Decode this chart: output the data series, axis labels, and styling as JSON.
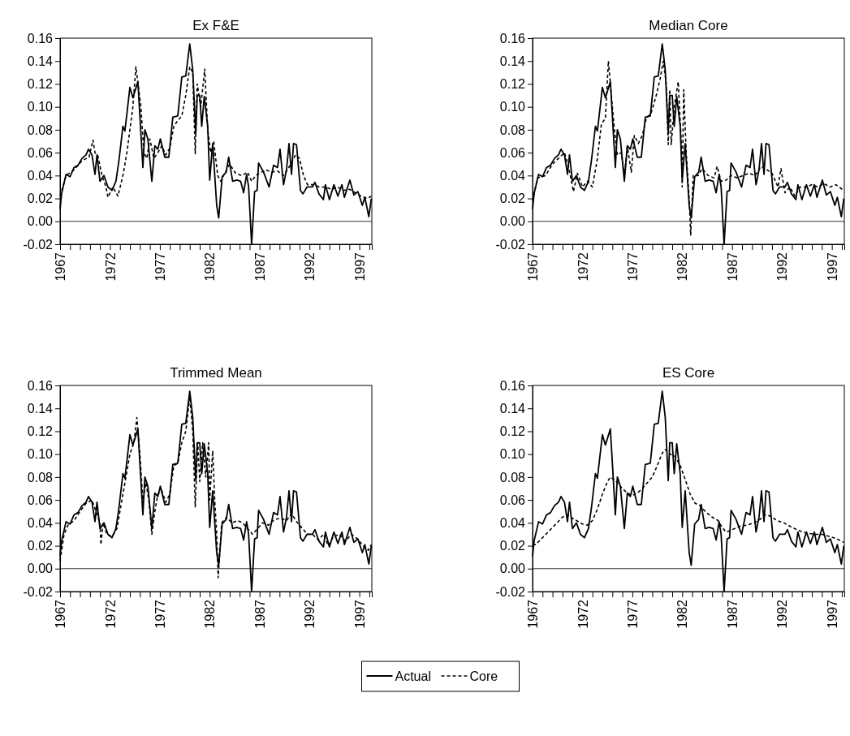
{
  "chart_data": [
    {
      "type": "line",
      "title": "Ex F&E",
      "xlim": [
        1967,
        1998.25
      ],
      "ylim": [
        -0.02,
        0.16
      ],
      "yticks": [
        {
          "value": -0.02,
          "label": "-0.02"
        },
        {
          "value": 0,
          "label": "0.00"
        },
        {
          "value": 0.02,
          "label": "0.02"
        },
        {
          "value": 0.04,
          "label": "0.04"
        },
        {
          "value": 0.06,
          "label": "0.06"
        },
        {
          "value": 0.08,
          "label": "0.08"
        },
        {
          "value": 0.1,
          "label": "0.10"
        },
        {
          "value": 0.12,
          "label": "0.12"
        },
        {
          "value": 0.14,
          "label": "0.14"
        },
        {
          "value": 0.16,
          "label": "0.16"
        }
      ],
      "xticks": [
        1967,
        {
          "value": 1968,
          "label": null
        },
        {
          "value": 1969,
          "label": null
        },
        {
          "value": 1970,
          "label": null
        },
        {
          "value": 1971,
          "label": null
        },
        1972,
        {
          "value": 1973,
          "label": null
        },
        {
          "value": 1974,
          "label": null
        },
        {
          "value": 1975,
          "label": null
        },
        {
          "value": 1976,
          "label": null
        },
        1977,
        {
          "value": 1978,
          "label": null
        },
        {
          "value": 1979,
          "label": null
        },
        {
          "value": 1980,
          "label": null
        },
        {
          "value": 1981,
          "label": null
        },
        1982,
        {
          "value": 1983,
          "label": null
        },
        {
          "value": 1984,
          "label": null
        },
        {
          "value": 1985,
          "label": null
        },
        {
          "value": 1986,
          "label": null
        },
        1987,
        {
          "value": 1988,
          "label": null
        },
        {
          "value": 1989,
          "label": null
        },
        {
          "value": 1990,
          "label": null
        },
        {
          "value": 1991,
          "label": null
        },
        1992,
        {
          "value": 1993,
          "label": null
        },
        {
          "value": 1994,
          "label": null
        },
        {
          "value": 1995,
          "label": null
        },
        {
          "value": 1996,
          "label": null
        },
        1997,
        {
          "value": 1998,
          "label": null
        }
      ],
      "ref_lines": [
        {
          "axis": "y",
          "value": 0,
          "color": "#000000"
        }
      ],
      "legend": "bottom",
      "series": [
        {
          "name": "Actual",
          "color": "#000000",
          "line_style": "solid",
          "x": [
            1967.0,
            1967.15,
            1967.6,
            1968.0,
            1968.4,
            1968.8,
            1969.2,
            1969.6,
            1969.85,
            1970.2,
            1970.5,
            1970.7,
            1971.0,
            1971.4,
            1971.8,
            1972.2,
            1972.6,
            1972.9,
            1973.3,
            1973.5,
            1974.0,
            1974.3,
            1974.8,
            1975.3,
            1975.5,
            1975.8,
            1976.2,
            1976.5,
            1976.8,
            1977.05,
            1977.5,
            1977.9,
            1978.3,
            1978.8,
            1979.2,
            1979.6,
            1980.0,
            1980.3,
            1980.6,
            1980.75,
            1981.0,
            1981.2,
            1981.45,
            1981.8,
            1982.0,
            1982.3,
            1982.7,
            1982.9,
            1983.25,
            1983.65,
            1983.9,
            1984.3,
            1984.7,
            1985.1,
            1985.4,
            1985.7,
            1985.9,
            1986.2,
            1986.5,
            1986.75,
            1986.9,
            1987.4,
            1987.95,
            1988.4,
            1988.8,
            1989.05,
            1989.4,
            1989.7,
            1989.95,
            1990.2,
            1990.4,
            1990.7,
            1991.1,
            1991.35,
            1991.75,
            1992.3,
            1992.55,
            1992.95,
            1993.4,
            1993.6,
            1994.0,
            1994.45,
            1994.85,
            1995.25,
            1995.5,
            1996.05,
            1996.45,
            1996.85,
            1997.3,
            1997.55,
            1997.95,
            1998.2
          ],
          "values": [
            0.0105,
            0.024,
            0.041,
            0.039,
            0.047,
            0.049,
            0.055,
            0.058,
            0.063,
            0.058,
            0.041,
            0.058,
            0.035,
            0.04,
            0.03,
            0.027,
            0.035,
            0.053,
            0.083,
            0.079,
            0.117,
            0.108,
            0.122,
            0.047,
            0.08,
            0.072,
            0.035,
            0.066,
            0.063,
            0.072,
            0.056,
            0.056,
            0.091,
            0.092,
            0.126,
            0.127,
            0.155,
            0.132,
            0.077,
            0.11,
            0.11,
            0.083,
            0.109,
            0.083,
            0.036,
            0.068,
            0.014,
            0.003,
            0.039,
            0.043,
            0.056,
            0.035,
            0.036,
            0.035,
            0.025,
            0.041,
            0.03,
            -0.02,
            0.026,
            0.027,
            0.051,
            0.043,
            0.03,
            0.049,
            0.047,
            0.063,
            0.032,
            0.045,
            0.068,
            0.041,
            0.068,
            0.067,
            0.027,
            0.024,
            0.03,
            0.03,
            0.034,
            0.024,
            0.019,
            0.032,
            0.019,
            0.032,
            0.022,
            0.032,
            0.021,
            0.036,
            0.023,
            0.026,
            0.014,
            0.021,
            0.004,
            0.02
          ]
        },
        {
          "name": "Core",
          "color": "#000000",
          "line_style": "dashed",
          "x": [
            1967.0,
            1967.6,
            1968.4,
            1969.2,
            1969.9,
            1970.3,
            1970.5,
            1970.8,
            1971.2,
            1971.6,
            1971.8,
            1972.3,
            1972.8,
            1973.3,
            1973.7,
            1974.0,
            1974.3,
            1974.6,
            1975.1,
            1975.4,
            1975.7,
            1976.0,
            1976.4,
            1976.8,
            1977.2,
            1977.6,
            1978.0,
            1978.4,
            1978.8,
            1979.2,
            1979.6,
            1980.0,
            1980.3,
            1980.55,
            1980.75,
            1981.1,
            1981.5,
            1981.8,
            1982.1,
            1982.4,
            1982.8,
            1983.1,
            1983.5,
            1984.0,
            1984.6,
            1985.2,
            1985.8,
            1986.2,
            1986.6,
            1987.0,
            1987.6,
            1988.2,
            1988.8,
            1989.4,
            1990.0,
            1990.6,
            1991.0,
            1991.4,
            1991.8,
            1992.4,
            1993.0,
            1993.6,
            1994.2,
            1994.8,
            1995.4,
            1996.0,
            1996.6,
            1997.2,
            1997.8,
            1998.2
          ],
          "values": [
            0.022,
            0.04,
            0.045,
            0.053,
            0.056,
            0.071,
            0.06,
            0.057,
            0.04,
            0.03,
            0.021,
            0.03,
            0.022,
            0.04,
            0.06,
            0.08,
            0.1,
            0.135,
            0.1,
            0.06,
            0.055,
            0.072,
            0.055,
            0.06,
            0.066,
            0.058,
            0.064,
            0.083,
            0.088,
            0.092,
            0.11,
            0.135,
            0.13,
            0.059,
            0.12,
            0.1,
            0.133,
            0.08,
            0.06,
            0.07,
            0.04,
            0.035,
            0.042,
            0.05,
            0.042,
            0.04,
            0.043,
            0.035,
            0.04,
            0.042,
            0.045,
            0.043,
            0.044,
            0.04,
            0.048,
            0.058,
            0.055,
            0.04,
            0.032,
            0.032,
            0.03,
            0.03,
            0.028,
            0.03,
            0.027,
            0.028,
            0.025,
            0.022,
            0.02,
            0.022
          ]
        }
      ]
    },
    {
      "type": "line",
      "title": "Median Core",
      "xlim": [
        1967,
        1998.25
      ],
      "ylim": [
        -0.02,
        0.16
      ],
      "yticks": [
        {
          "value": -0.02,
          "label": "-0.02"
        },
        {
          "value": 0,
          "label": "0.00"
        },
        {
          "value": 0.02,
          "label": "0.02"
        },
        {
          "value": 0.04,
          "label": "0.04"
        },
        {
          "value": 0.06,
          "label": "0.06"
        },
        {
          "value": 0.08,
          "label": "0.08"
        },
        {
          "value": 0.1,
          "label": "0.10"
        },
        {
          "value": 0.12,
          "label": "0.12"
        },
        {
          "value": 0.14,
          "label": "0.14"
        },
        {
          "value": 0.16,
          "label": "0.16"
        }
      ],
      "xticks": [
        1967,
        {
          "value": 1968,
          "label": null
        },
        {
          "value": 1969,
          "label": null
        },
        {
          "value": 1970,
          "label": null
        },
        {
          "value": 1971,
          "label": null
        },
        1972,
        {
          "value": 1973,
          "label": null
        },
        {
          "value": 1974,
          "label": null
        },
        {
          "value": 1975,
          "label": null
        },
        {
          "value": 1976,
          "label": null
        },
        1977,
        {
          "value": 1978,
          "label": null
        },
        {
          "value": 1979,
          "label": null
        },
        {
          "value": 1980,
          "label": null
        },
        {
          "value": 1981,
          "label": null
        },
        1982,
        {
          "value": 1983,
          "label": null
        },
        {
          "value": 1984,
          "label": null
        },
        {
          "value": 1985,
          "label": null
        },
        {
          "value": 1986,
          "label": null
        },
        1987,
        {
          "value": 1988,
          "label": null
        },
        {
          "value": 1989,
          "label": null
        },
        {
          "value": 1990,
          "label": null
        },
        {
          "value": 1991,
          "label": null
        },
        1992,
        {
          "value": 1993,
          "label": null
        },
        {
          "value": 1994,
          "label": null
        },
        {
          "value": 1995,
          "label": null
        },
        {
          "value": 1996,
          "label": null
        },
        1997,
        {
          "value": 1998,
          "label": null
        }
      ],
      "ref_lines": [
        {
          "axis": "y",
          "value": 0,
          "color": "#000000"
        }
      ],
      "series": [
        {
          "color": "#000000",
          "line_style": "solid",
          "x": [
            1967.0,
            1967.15,
            1967.6,
            1968.0,
            1968.4,
            1968.8,
            1969.2,
            1969.6,
            1969.85,
            1970.2,
            1970.5,
            1970.7,
            1971.0,
            1971.4,
            1971.8,
            1972.2,
            1972.6,
            1972.9,
            1973.3,
            1973.5,
            1974.0,
            1974.3,
            1974.8,
            1975.3,
            1975.5,
            1975.8,
            1976.2,
            1976.5,
            1976.8,
            1977.05,
            1977.5,
            1977.9,
            1978.3,
            1978.8,
            1979.2,
            1979.6,
            1980.0,
            1980.3,
            1980.6,
            1980.75,
            1981.0,
            1981.2,
            1981.45,
            1981.8,
            1982.0,
            1982.3,
            1982.7,
            1982.9,
            1983.25,
            1983.65,
            1983.9,
            1984.3,
            1984.7,
            1985.1,
            1985.4,
            1985.7,
            1985.9,
            1986.2,
            1986.5,
            1986.75,
            1986.9,
            1987.4,
            1987.95,
            1988.4,
            1988.8,
            1989.05,
            1989.4,
            1989.7,
            1989.95,
            1990.2,
            1990.4,
            1990.7,
            1991.1,
            1991.35,
            1991.75,
            1992.3,
            1992.55,
            1992.95,
            1993.4,
            1993.6,
            1994.0,
            1994.45,
            1994.85,
            1995.25,
            1995.5,
            1996.05,
            1996.45,
            1996.85,
            1997.3,
            1997.55,
            1997.95,
            1998.2
          ],
          "values": [
            0.0105,
            0.024,
            0.041,
            0.039,
            0.047,
            0.049,
            0.055,
            0.058,
            0.063,
            0.058,
            0.041,
            0.058,
            0.035,
            0.04,
            0.03,
            0.027,
            0.035,
            0.053,
            0.083,
            0.079,
            0.117,
            0.108,
            0.122,
            0.047,
            0.08,
            0.072,
            0.035,
            0.066,
            0.063,
            0.072,
            0.056,
            0.056,
            0.091,
            0.092,
            0.126,
            0.127,
            0.155,
            0.132,
            0.077,
            0.11,
            0.11,
            0.083,
            0.109,
            0.083,
            0.036,
            0.068,
            0.014,
            0.003,
            0.039,
            0.043,
            0.056,
            0.035,
            0.036,
            0.035,
            0.025,
            0.041,
            0.03,
            -0.02,
            0.026,
            0.027,
            0.051,
            0.043,
            0.03,
            0.049,
            0.047,
            0.063,
            0.032,
            0.045,
            0.068,
            0.041,
            0.068,
            0.067,
            0.027,
            0.024,
            0.03,
            0.03,
            0.034,
            0.024,
            0.019,
            0.032,
            0.019,
            0.032,
            0.022,
            0.032,
            0.021,
            0.036,
            0.023,
            0.026,
            0.014,
            0.021,
            0.004,
            0.02
          ]
        },
        {
          "color": "#000000",
          "line_style": "dashed",
          "x": [
            1967.0,
            1967.5,
            1968.3,
            1969.0,
            1969.6,
            1970.2,
            1970.6,
            1971.1,
            1971.5,
            1972.0,
            1972.5,
            1973.0,
            1973.5,
            1973.9,
            1974.3,
            1974.6,
            1974.9,
            1975.2,
            1975.5,
            1975.9,
            1976.2,
            1976.5,
            1976.9,
            1977.2,
            1977.6,
            1978.0,
            1978.4,
            1978.9,
            1979.4,
            1979.8,
            1980.1,
            1980.4,
            1980.6,
            1980.75,
            1980.9,
            1981.2,
            1981.6,
            1981.9,
            1982.0,
            1982.15,
            1982.4,
            1982.7,
            1982.85,
            1983.1,
            1983.6,
            1984.0,
            1984.6,
            1985.2,
            1985.5,
            1985.9,
            1986.4,
            1986.9,
            1987.5,
            1988.1,
            1988.7,
            1989.3,
            1989.9,
            1990.5,
            1991.0,
            1991.6,
            1991.9,
            1992.3,
            1992.8,
            1993.3,
            1993.8,
            1994.4,
            1995.0,
            1995.6,
            1996.2,
            1996.8,
            1997.4,
            1998.2
          ],
          "values": [
            0.018,
            0.038,
            0.04,
            0.05,
            0.055,
            0.06,
            0.048,
            0.026,
            0.042,
            0.03,
            0.035,
            0.03,
            0.055,
            0.085,
            0.09,
            0.14,
            0.11,
            0.08,
            0.058,
            0.06,
            0.04,
            0.065,
            0.043,
            0.075,
            0.068,
            0.075,
            0.09,
            0.095,
            0.11,
            0.125,
            0.14,
            0.12,
            0.067,
            0.115,
            0.067,
            0.1,
            0.122,
            0.07,
            0.03,
            0.115,
            0.06,
            0.02,
            -0.012,
            0.04,
            0.04,
            0.046,
            0.04,
            0.038,
            0.048,
            0.035,
            0.036,
            0.04,
            0.038,
            0.04,
            0.042,
            0.04,
            0.048,
            0.045,
            0.042,
            0.03,
            0.046,
            0.025,
            0.03,
            0.022,
            0.03,
            0.03,
            0.032,
            0.03,
            0.033,
            0.03,
            0.032,
            0.027
          ]
        }
      ]
    },
    {
      "type": "line",
      "title": "Trimmed Mean",
      "xlim": [
        1967,
        1998.25
      ],
      "ylim": [
        -0.02,
        0.16
      ],
      "yticks": [
        {
          "value": -0.02,
          "label": "-0.02"
        },
        {
          "value": 0,
          "label": "0.00"
        },
        {
          "value": 0.02,
          "label": "0.02"
        },
        {
          "value": 0.04,
          "label": "0.04"
        },
        {
          "value": 0.06,
          "label": "0.06"
        },
        {
          "value": 0.08,
          "label": "0.08"
        },
        {
          "value": 0.1,
          "label": "0.10"
        },
        {
          "value": 0.12,
          "label": "0.12"
        },
        {
          "value": 0.14,
          "label": "0.14"
        },
        {
          "value": 0.16,
          "label": "0.16"
        }
      ],
      "xticks": [
        1967,
        {
          "value": 1968,
          "label": null
        },
        {
          "value": 1969,
          "label": null
        },
        {
          "value": 1970,
          "label": null
        },
        {
          "value": 1971,
          "label": null
        },
        1972,
        {
          "value": 1973,
          "label": null
        },
        {
          "value": 1974,
          "label": null
        },
        {
          "value": 1975,
          "label": null
        },
        {
          "value": 1976,
          "label": null
        },
        1977,
        {
          "value": 1978,
          "label": null
        },
        {
          "value": 1979,
          "label": null
        },
        {
          "value": 1980,
          "label": null
        },
        {
          "value": 1981,
          "label": null
        },
        1982,
        {
          "value": 1983,
          "label": null
        },
        {
          "value": 1984,
          "label": null
        },
        {
          "value": 1985,
          "label": null
        },
        {
          "value": 1986,
          "label": null
        },
        1987,
        {
          "value": 1988,
          "label": null
        },
        {
          "value": 1989,
          "label": null
        },
        {
          "value": 1990,
          "label": null
        },
        {
          "value": 1991,
          "label": null
        },
        1992,
        {
          "value": 1993,
          "label": null
        },
        {
          "value": 1994,
          "label": null
        },
        {
          "value": 1995,
          "label": null
        },
        {
          "value": 1996,
          "label": null
        },
        1997,
        {
          "value": 1998,
          "label": null
        }
      ],
      "ref_lines": [
        {
          "axis": "y",
          "value": 0,
          "color": "#000000"
        }
      ],
      "series": [
        {
          "color": "#000000",
          "line_style": "solid",
          "x": [
            1967.0,
            1967.15,
            1967.6,
            1968.0,
            1968.4,
            1968.8,
            1969.2,
            1969.6,
            1969.85,
            1970.2,
            1970.5,
            1970.7,
            1971.0,
            1971.4,
            1971.8,
            1972.2,
            1972.6,
            1972.9,
            1973.3,
            1973.5,
            1974.0,
            1974.3,
            1974.8,
            1975.3,
            1975.5,
            1975.8,
            1976.2,
            1976.5,
            1976.8,
            1977.05,
            1977.5,
            1977.9,
            1978.3,
            1978.8,
            1979.2,
            1979.6,
            1980.0,
            1980.3,
            1980.6,
            1980.75,
            1981.0,
            1981.2,
            1981.45,
            1981.8,
            1982.0,
            1982.3,
            1982.7,
            1982.9,
            1983.25,
            1983.65,
            1983.9,
            1984.3,
            1984.7,
            1985.1,
            1985.4,
            1985.7,
            1985.9,
            1986.2,
            1986.5,
            1986.75,
            1986.9,
            1987.4,
            1987.95,
            1988.4,
            1988.8,
            1989.05,
            1989.4,
            1989.7,
            1989.95,
            1990.2,
            1990.4,
            1990.7,
            1991.1,
            1991.35,
            1991.75,
            1992.3,
            1992.55,
            1992.95,
            1993.4,
            1993.6,
            1994.0,
            1994.45,
            1994.85,
            1995.25,
            1995.5,
            1996.05,
            1996.45,
            1996.85,
            1997.3,
            1997.55,
            1997.95,
            1998.2
          ],
          "values": [
            0.0105,
            0.024,
            0.041,
            0.039,
            0.047,
            0.049,
            0.055,
            0.058,
            0.063,
            0.058,
            0.041,
            0.058,
            0.035,
            0.04,
            0.03,
            0.027,
            0.035,
            0.053,
            0.083,
            0.079,
            0.117,
            0.108,
            0.122,
            0.047,
            0.08,
            0.072,
            0.035,
            0.066,
            0.063,
            0.072,
            0.056,
            0.056,
            0.091,
            0.092,
            0.126,
            0.127,
            0.155,
            0.132,
            0.077,
            0.11,
            0.11,
            0.083,
            0.109,
            0.083,
            0.036,
            0.068,
            0.014,
            0.003,
            0.039,
            0.043,
            0.056,
            0.035,
            0.036,
            0.035,
            0.025,
            0.041,
            0.03,
            -0.02,
            0.026,
            0.027,
            0.051,
            0.043,
            0.03,
            0.049,
            0.047,
            0.063,
            0.032,
            0.045,
            0.068,
            0.041,
            0.068,
            0.067,
            0.027,
            0.024,
            0.03,
            0.03,
            0.034,
            0.024,
            0.019,
            0.032,
            0.019,
            0.032,
            0.022,
            0.032,
            0.021,
            0.036,
            0.023,
            0.026,
            0.014,
            0.021,
            0.004,
            0.02
          ]
        },
        {
          "color": "#000000",
          "line_style": "dashed",
          "x": [
            1967.0,
            1967.4,
            1967.8,
            1968.4,
            1969.0,
            1969.6,
            1970.2,
            1970.6,
            1971.0,
            1971.1,
            1971.3,
            1971.7,
            1972.2,
            1972.7,
            1973.2,
            1973.6,
            1974.0,
            1974.4,
            1974.7,
            1975.0,
            1975.3,
            1975.6,
            1975.9,
            1976.2,
            1976.5,
            1976.8,
            1977.2,
            1977.6,
            1978.0,
            1978.4,
            1978.8,
            1979.2,
            1979.6,
            1980.0,
            1980.3,
            1980.55,
            1980.8,
            1981.0,
            1981.3,
            1981.6,
            1981.9,
            1982.0,
            1982.3,
            1982.5,
            1982.7,
            1982.85,
            1983.2,
            1983.7,
            1984.2,
            1984.8,
            1985.3,
            1985.8,
            1986.3,
            1986.8,
            1987.3,
            1987.9,
            1988.5,
            1989.1,
            1989.7,
            1990.2,
            1990.8,
            1991.3,
            1991.8,
            1992.3,
            1992.9,
            1993.4,
            1993.9,
            1994.4,
            1995.0,
            1995.6,
            1996.2,
            1996.8,
            1997.4,
            1997.9,
            1998.2
          ],
          "values": [
            0.007,
            0.03,
            0.038,
            0.042,
            0.05,
            0.057,
            0.06,
            0.05,
            0.04,
            0.021,
            0.04,
            0.03,
            0.028,
            0.035,
            0.06,
            0.08,
            0.1,
            0.11,
            0.132,
            0.1,
            0.06,
            0.075,
            0.06,
            0.03,
            0.05,
            0.065,
            0.068,
            0.058,
            0.065,
            0.09,
            0.092,
            0.11,
            0.12,
            0.15,
            0.12,
            0.054,
            0.11,
            0.076,
            0.11,
            0.08,
            0.11,
            0.06,
            0.103,
            0.06,
            0.03,
            -0.008,
            0.04,
            0.045,
            0.04,
            0.042,
            0.04,
            0.035,
            0.03,
            0.035,
            0.04,
            0.038,
            0.043,
            0.044,
            0.042,
            0.048,
            0.04,
            0.035,
            0.03,
            0.03,
            0.025,
            0.03,
            0.02,
            0.028,
            0.03,
            0.024,
            0.03,
            0.026,
            0.02,
            0.016,
            0.021
          ]
        }
      ]
    },
    {
      "type": "line",
      "title": "ES Core",
      "xlim": [
        1967,
        1998.25
      ],
      "ylim": [
        -0.02,
        0.16
      ],
      "yticks": [
        {
          "value": -0.02,
          "label": "-0.02"
        },
        {
          "value": 0,
          "label": "0.00"
        },
        {
          "value": 0.02,
          "label": "0.02"
        },
        {
          "value": 0.04,
          "label": "0.04"
        },
        {
          "value": 0.06,
          "label": "0.06"
        },
        {
          "value": 0.08,
          "label": "0.08"
        },
        {
          "value": 0.1,
          "label": "0.10"
        },
        {
          "value": 0.12,
          "label": "0.12"
        },
        {
          "value": 0.14,
          "label": "0.14"
        },
        {
          "value": 0.16,
          "label": "0.16"
        }
      ],
      "xticks": [
        1967,
        {
          "value": 1968,
          "label": null
        },
        {
          "value": 1969,
          "label": null
        },
        {
          "value": 1970,
          "label": null
        },
        {
          "value": 1971,
          "label": null
        },
        1972,
        {
          "value": 1973,
          "label": null
        },
        {
          "value": 1974,
          "label": null
        },
        {
          "value": 1975,
          "label": null
        },
        {
          "value": 1976,
          "label": null
        },
        1977,
        {
          "value": 1978,
          "label": null
        },
        {
          "value": 1979,
          "label": null
        },
        {
          "value": 1980,
          "label": null
        },
        {
          "value": 1981,
          "label": null
        },
        1982,
        {
          "value": 1983,
          "label": null
        },
        {
          "value": 1984,
          "label": null
        },
        {
          "value": 1985,
          "label": null
        },
        {
          "value": 1986,
          "label": null
        },
        1987,
        {
          "value": 1988,
          "label": null
        },
        {
          "value": 1989,
          "label": null
        },
        {
          "value": 1990,
          "label": null
        },
        {
          "value": 1991,
          "label": null
        },
        1992,
        {
          "value": 1993,
          "label": null
        },
        {
          "value": 1994,
          "label": null
        },
        {
          "value": 1995,
          "label": null
        },
        {
          "value": 1996,
          "label": null
        },
        1997,
        {
          "value": 1998,
          "label": null
        }
      ],
      "ref_lines": [
        {
          "axis": "y",
          "value": 0,
          "color": "#000000"
        }
      ],
      "series": [
        {
          "color": "#000000",
          "line_style": "solid",
          "x": [
            1967.0,
            1967.15,
            1967.6,
            1968.0,
            1968.4,
            1968.8,
            1969.2,
            1969.6,
            1969.85,
            1970.2,
            1970.5,
            1970.7,
            1971.0,
            1971.4,
            1971.8,
            1972.2,
            1972.6,
            1972.9,
            1973.3,
            1973.5,
            1974.0,
            1974.3,
            1974.8,
            1975.3,
            1975.5,
            1975.8,
            1976.2,
            1976.5,
            1976.8,
            1977.05,
            1977.5,
            1977.9,
            1978.3,
            1978.8,
            1979.2,
            1979.6,
            1980.0,
            1980.3,
            1980.6,
            1980.75,
            1981.0,
            1981.2,
            1981.45,
            1981.8,
            1982.0,
            1982.3,
            1982.7,
            1982.9,
            1983.25,
            1983.65,
            1983.9,
            1984.3,
            1984.7,
            1985.1,
            1985.4,
            1985.7,
            1985.9,
            1986.2,
            1986.5,
            1986.75,
            1986.9,
            1987.4,
            1987.95,
            1988.4,
            1988.8,
            1989.05,
            1989.4,
            1989.7,
            1989.95,
            1990.2,
            1990.4,
            1990.7,
            1991.1,
            1991.35,
            1991.75,
            1992.3,
            1992.55,
            1992.95,
            1993.4,
            1993.6,
            1994.0,
            1994.45,
            1994.85,
            1995.25,
            1995.5,
            1996.05,
            1996.45,
            1996.85,
            1997.3,
            1997.55,
            1997.95,
            1998.2
          ],
          "values": [
            0.0105,
            0.024,
            0.041,
            0.039,
            0.047,
            0.049,
            0.055,
            0.058,
            0.063,
            0.058,
            0.041,
            0.058,
            0.035,
            0.04,
            0.03,
            0.027,
            0.035,
            0.053,
            0.083,
            0.079,
            0.117,
            0.108,
            0.122,
            0.047,
            0.08,
            0.072,
            0.035,
            0.066,
            0.063,
            0.072,
            0.056,
            0.056,
            0.091,
            0.092,
            0.126,
            0.127,
            0.155,
            0.132,
            0.077,
            0.11,
            0.11,
            0.083,
            0.109,
            0.083,
            0.036,
            0.068,
            0.014,
            0.003,
            0.039,
            0.043,
            0.056,
            0.035,
            0.036,
            0.035,
            0.025,
            0.041,
            0.03,
            -0.02,
            0.026,
            0.027,
            0.051,
            0.043,
            0.03,
            0.049,
            0.047,
            0.063,
            0.032,
            0.045,
            0.068,
            0.041,
            0.068,
            0.067,
            0.027,
            0.024,
            0.03,
            0.03,
            0.034,
            0.024,
            0.019,
            0.032,
            0.019,
            0.032,
            0.022,
            0.032,
            0.021,
            0.036,
            0.023,
            0.026,
            0.014,
            0.021,
            0.004,
            0.02
          ]
        },
        {
          "color": "#000000",
          "line_style": "dashed",
          "x": [
            1967.0,
            1967.3,
            1968.0,
            1969.0,
            1970.0,
            1970.5,
            1971.0,
            1972.0,
            1972.5,
            1973.0,
            1973.5,
            1974.0,
            1974.5,
            1974.8,
            1975.3,
            1976.0,
            1976.5,
            1977.0,
            1977.5,
            1978.0,
            1978.5,
            1979.0,
            1979.5,
            1980.0,
            1980.3,
            1980.8,
            1981.3,
            1981.8,
            1982.3,
            1982.8,
            1983.3,
            1983.8,
            1984.3,
            1985.0,
            1985.6,
            1986.0,
            1986.4,
            1987.0,
            1987.8,
            1988.5,
            1989.2,
            1989.8,
            1990.3,
            1990.8,
            1991.5,
            1992.2,
            1993.0,
            1993.8,
            1994.5,
            1995.3,
            1996.0,
            1996.8,
            1997.5,
            1998.2
          ],
          "values": [
            0.021,
            0.021,
            0.027,
            0.036,
            0.045,
            0.047,
            0.044,
            0.039,
            0.038,
            0.042,
            0.052,
            0.065,
            0.076,
            0.08,
            0.077,
            0.07,
            0.066,
            0.064,
            0.066,
            0.07,
            0.075,
            0.08,
            0.09,
            0.101,
            0.104,
            0.1,
            0.098,
            0.09,
            0.078,
            0.065,
            0.057,
            0.055,
            0.05,
            0.045,
            0.042,
            0.036,
            0.032,
            0.034,
            0.037,
            0.038,
            0.04,
            0.043,
            0.047,
            0.046,
            0.042,
            0.04,
            0.036,
            0.033,
            0.031,
            0.03,
            0.03,
            0.028,
            0.026,
            0.023
          ]
        }
      ]
    }
  ]
}
